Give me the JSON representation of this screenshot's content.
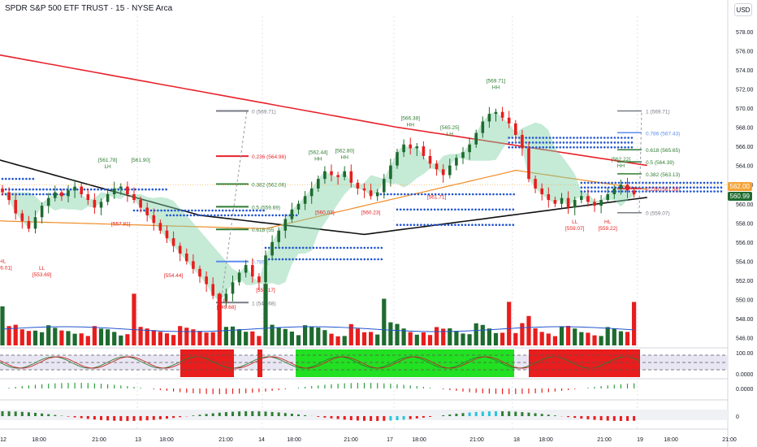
{
  "header": {
    "title": "SPDR S&P 500 ETF TRUST · 15 · NYSE Arca",
    "currency": "USD"
  },
  "price_tags": {
    "last": "560.99",
    "level": "562.00"
  },
  "colors": {
    "up": "#1e6b2f",
    "down": "#e81d1d",
    "ma_red": "#e8222a",
    "ma_black": "#111111",
    "ma_orange": "#f08a24",
    "dots": "#2155cf",
    "fib_gray": "#787b86",
    "fib_red": "#e8222a",
    "fib_green": "#2e7d32",
    "fib_blue": "#5b8def"
  },
  "chart_data": {
    "type": "candlestick",
    "y_axis": {
      "ticks": [
        "578.00",
        "576.00",
        "574.00",
        "572.00",
        "570.00",
        "568.00",
        "566.00",
        "564.00",
        "562.00",
        "560.00",
        "558.00",
        "556.00",
        "554.00",
        "552.00",
        "550.00",
        "548.00",
        "546.00"
      ],
      "ylim": [
        545.2,
        579.6
      ]
    },
    "x_axis": {
      "ticks": [
        "12",
        "18:00",
        "21:00",
        "13",
        "18:00",
        "21:00",
        "14",
        "18:00",
        "21:00",
        "17",
        "18:00",
        "21:00",
        "18",
        "18:00",
        "21:00",
        "19",
        "18:00",
        "21:00"
      ]
    },
    "indicator_axes": {
      "stoch": [
        "100.00",
        "0.0000"
      ],
      "osc": [
        "0.0000"
      ],
      "hist": [
        "0"
      ]
    },
    "closes": [
      561.2,
      560.4,
      559.0,
      558.2,
      557.4,
      558.6,
      559.8,
      560.6,
      561.2,
      560.8,
      561.4,
      561.8,
      561.0,
      560.4,
      559.6,
      560.2,
      561.0,
      561.6,
      561.8,
      561.0,
      560.4,
      559.6,
      558.8,
      558.0,
      557.2,
      556.4,
      555.6,
      554.8,
      554.0,
      553.2,
      552.4,
      551.6,
      550.4,
      549.8,
      550.6,
      551.8,
      552.8,
      553.6,
      552.4,
      551.8,
      554.6,
      556.0,
      557.2,
      558.4,
      559.4,
      560.0,
      560.8,
      561.6,
      562.6,
      563.4,
      563.0,
      562.8,
      563.4,
      562.2,
      561.6,
      561.4,
      560.8,
      561.2,
      562.6,
      564.0,
      565.4,
      566.2,
      565.8,
      566.0,
      565.0,
      564.2,
      563.6,
      563.0,
      564.0,
      564.8,
      565.4,
      566.2,
      567.4,
      568.6,
      569.4,
      569.6,
      569.0,
      568.4,
      567.2,
      565.8,
      562.6,
      561.6,
      561.0,
      560.4,
      560.0,
      560.6,
      559.6,
      560.4,
      560.8,
      560.2,
      559.8,
      560.4,
      561.0,
      561.6,
      562.0,
      561.4,
      560.99
    ],
    "price_labels": [
      {
        "text": "HL",
        "type": "low",
        "price": 554.5,
        "bar": 0
      },
      {
        "text": "[556.01]",
        "type": "low",
        "price": 554.5,
        "bar": 0,
        "second": true
      },
      {
        "text": "LL",
        "type": "low",
        "price": 553.8,
        "bar": 6
      },
      {
        "text": "[553.69]",
        "type": "low",
        "price": 553.8,
        "bar": 6,
        "second": true
      },
      {
        "text": "[561.78]",
        "type": "high",
        "price": 563.2,
        "bar": 16
      },
      {
        "text": "LH",
        "type": "high",
        "price": 563.2,
        "bar": 16,
        "second": true
      },
      {
        "text": "[561.90]",
        "type": "high",
        "price": 563.2,
        "bar": 21
      },
      {
        "text": "[557.81]",
        "type": "low",
        "price": 558.4,
        "bar": 18
      },
      {
        "text": "[554.44]",
        "type": "low",
        "price": 553.0,
        "bar": 26
      },
      {
        "text": "LL",
        "type": "low",
        "price": 550.4,
        "bar": 34
      },
      {
        "text": "[549.68]",
        "type": "low",
        "price": 550.4,
        "bar": 34,
        "second": true
      },
      {
        "text": "[551.17]",
        "type": "low",
        "price": 551.5,
        "bar": 40
      },
      {
        "text": "[562.44]",
        "type": "high",
        "price": 564.0,
        "bar": 48
      },
      {
        "text": "HH",
        "type": "high",
        "price": 564.0,
        "bar": 48,
        "second": true
      },
      {
        "text": "[562.80]",
        "type": "high",
        "price": 564.2,
        "bar": 52
      },
      {
        "text": "HH",
        "type": "high",
        "price": 564.2,
        "bar": 52,
        "second": true
      },
      {
        "text": "[560.03]",
        "type": "low",
        "price": 559.6,
        "bar": 49
      },
      {
        "text": "[560.23]",
        "type": "low",
        "price": 559.6,
        "bar": 56
      },
      {
        "text": "[566.38]",
        "type": "high",
        "price": 567.6,
        "bar": 62
      },
      {
        "text": "HH",
        "type": "high",
        "price": 567.6,
        "bar": 62,
        "second": true
      },
      {
        "text": "[565.25]",
        "type": "high",
        "price": 566.6,
        "bar": 68
      },
      {
        "text": "LH",
        "type": "high",
        "price": 566.6,
        "bar": 68,
        "second": true
      },
      {
        "text": "[561.71]",
        "type": "low",
        "price": 561.2,
        "bar": 66
      },
      {
        "text": "[569.71]",
        "type": "high",
        "price": 571.5,
        "bar": 75
      },
      {
        "text": "HH",
        "type": "high",
        "price": 571.5,
        "bar": 75,
        "second": true
      },
      {
        "text": "LL",
        "type": "low",
        "price": 558.6,
        "bar": 87
      },
      {
        "text": "[559.07]",
        "type": "low",
        "price": 558.6,
        "bar": 87,
        "second": true
      },
      {
        "text": "HL",
        "type": "low",
        "price": 558.6,
        "bar": 92
      },
      {
        "text": "[559.22]",
        "type": "low",
        "price": 558.6,
        "bar": 92,
        "second": true
      },
      {
        "text": "[562.22]",
        "type": "high",
        "price": 563.3,
        "bar": 94
      },
      {
        "text": "HH",
        "type": "high",
        "price": 563.3,
        "bar": 94,
        "second": true
      }
    ],
    "fib_left": [
      {
        "ratio": "0",
        "price": 569.71,
        "color": "fib_gray"
      },
      {
        "ratio": "0.236",
        "price": 564.98,
        "color": "fib_red"
      },
      {
        "ratio": "0.382",
        "price": 562.06,
        "color": "fib_green"
      },
      {
        "ratio": "0.5",
        "price": 559.69,
        "color": "fib_green"
      },
      {
        "ratio": "0.618",
        "price": 557.33,
        "color": "fib_green"
      },
      {
        "ratio": "0.786",
        "price": 553.97,
        "color": "fib_blue"
      },
      {
        "ratio": "1",
        "price": 549.68,
        "color": "fib_gray"
      }
    ],
    "fib_left_labels": [
      "0 (569.71)",
      "0.236 (564.98)",
      "0.382 (562.06)",
      "0.5 (559.69)",
      "0.618 (55",
      "0.786 (",
      "1 (549.68)"
    ],
    "fib_right": [
      {
        "label": "1 (569.71)",
        "price": 569.71,
        "color": "fib_gray"
      },
      {
        "label": "0.786 (567.43)",
        "price": 567.43,
        "color": "fib_blue"
      },
      {
        "label": "0.618 (565.65)",
        "price": 565.65,
        "color": "fib_green"
      },
      {
        "label": "0.5 (564.39)",
        "price": 564.39,
        "color": "fib_green"
      },
      {
        "label": "0.382 (563.13)",
        "price": 563.13,
        "color": "fib_green"
      },
      {
        "label": "0.236 (561.58)",
        "price": 561.58,
        "color": "fib_red"
      },
      {
        "label": "0 (559.07)",
        "price": 559.07,
        "color": "fib_gray"
      }
    ]
  }
}
